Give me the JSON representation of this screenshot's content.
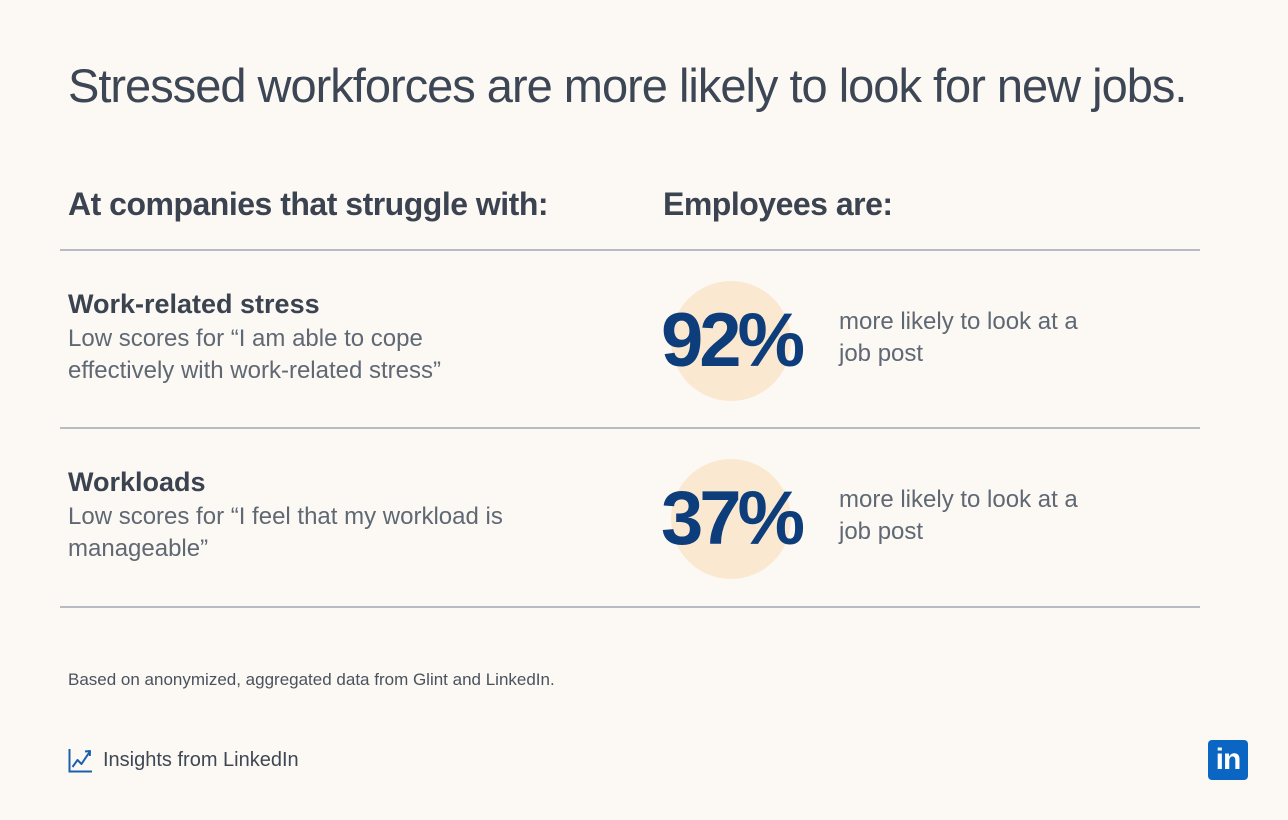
{
  "title": "Stressed workforces are more likely to look for new jobs.",
  "headers": {
    "left": "At companies that struggle with:",
    "right": "Employees are:"
  },
  "chart_data": {
    "type": "table",
    "title": "Stressed workforces are more likely to look for new jobs.",
    "columns": [
      "At companies that struggle with:",
      "Employees are:"
    ],
    "rows": [
      {
        "title": "Work-related stress",
        "description": "Low scores for “I am able to cope effectively with work-related stress”",
        "value": 92,
        "value_label": "92%",
        "note": "more likely to look at a job post"
      },
      {
        "title": "Workloads",
        "description": "Low scores for “I feel that my workload is manageable”",
        "value": 37,
        "value_label": "37%",
        "note": "more likely to look at a job post"
      }
    ]
  },
  "source": "Based on anonymized, aggregated data from Glint and LinkedIn.",
  "footer": {
    "brand_icon": "line-chart-icon",
    "brand_text": "Insights from LinkedIn",
    "logo_icon": "linkedin-logo-icon",
    "logo_text": "in"
  },
  "colors": {
    "background": "#fcf9f4",
    "accent": "#0d3d7a",
    "circle": "#fbe8d1",
    "linkedin_blue": "#0a66c2"
  }
}
